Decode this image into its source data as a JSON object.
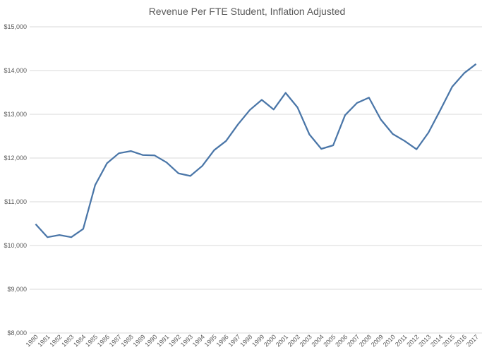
{
  "chart_data": {
    "type": "line",
    "title": "Revenue Per FTE Student, Inflation Adjusted",
    "xlabel": "",
    "ylabel": "",
    "ylim": [
      8000,
      15000
    ],
    "yticks": [
      {
        "value": 8000,
        "label": "$8,000"
      },
      {
        "value": 9000,
        "label": "$9,000"
      },
      {
        "value": 10000,
        "label": "$10,000"
      },
      {
        "value": 11000,
        "label": "$11,000"
      },
      {
        "value": 12000,
        "label": "$12,000"
      },
      {
        "value": 13000,
        "label": "$13,000"
      },
      {
        "value": 14000,
        "label": "$14,000"
      },
      {
        "value": 15000,
        "label": "$15,000"
      }
    ],
    "grid": true,
    "legend": "none",
    "line_color": "#4a76a8",
    "categories": [
      "1980",
      "1981",
      "1982",
      "1983",
      "1984",
      "1985",
      "1986",
      "1987",
      "1988",
      "1989",
      "1990",
      "1991",
      "1992",
      "1993",
      "1994",
      "1995",
      "1996",
      "1997",
      "1998",
      "1999",
      "2000",
      "2001",
      "2002",
      "2003",
      "2004",
      "2005",
      "2006",
      "2007",
      "2008",
      "2009",
      "2010",
      "2011",
      "2012",
      "2013",
      "2014",
      "2015",
      "2016",
      "2017"
    ],
    "series": [
      {
        "values": [
          10490,
          10190,
          10240,
          10190,
          10380,
          11380,
          11880,
          12110,
          12160,
          12070,
          12060,
          11900,
          11650,
          11590,
          11820,
          12180,
          12390,
          12770,
          13100,
          13330,
          13110,
          13490,
          13160,
          12540,
          12210,
          12290,
          12980,
          13260,
          13380,
          12880,
          12550,
          12390,
          12200,
          12580,
          13100,
          13630,
          13940,
          14150
        ]
      }
    ]
  }
}
